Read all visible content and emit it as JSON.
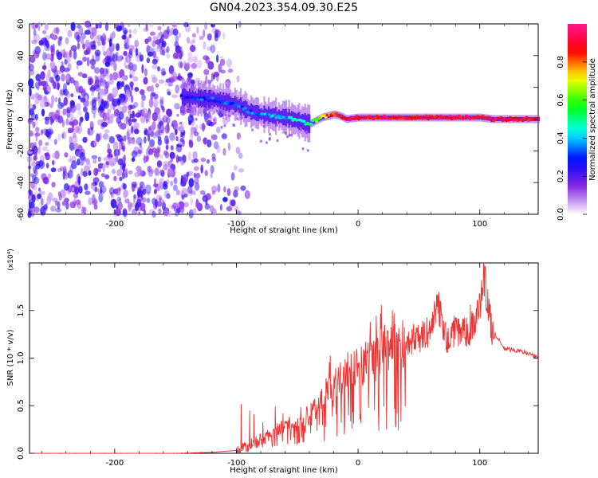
{
  "chart_data": [
    {
      "type": "heatmap",
      "title": "GN04.2023.354.09.30.E25",
      "xlabel": "Height of straight line (km)",
      "ylabel": "Frequency (Hz)",
      "xlim": [
        -270,
        148
      ],
      "ylim": [
        -60,
        60
      ],
      "xticks": [
        -200,
        -100,
        0,
        100
      ],
      "yticks": [
        -60,
        -40,
        -20,
        0,
        20,
        40,
        60
      ],
      "colorbar": {
        "label": "Normalized spectral amplitude",
        "range": [
          0,
          1
        ],
        "ticks": [
          0.0,
          0.2,
          0.4,
          0.6,
          0.8
        ],
        "colormap": [
          "#ffffff",
          "#8a2be2",
          "#0000ff",
          "#00ffff",
          "#00ff00",
          "#ffff00",
          "#ff0000",
          "#ff1493"
        ]
      },
      "dominant_frequency_track": {
        "x": [
          -145,
          -130,
          -115,
          -100,
          -90,
          -80,
          -70,
          -60,
          -50,
          -40,
          -35,
          -30,
          -25,
          -20,
          -15,
          -10,
          0,
          20,
          40,
          60,
          80,
          100,
          110,
          148
        ],
        "y": [
          14,
          13,
          12,
          9,
          5,
          3,
          2,
          1,
          -1,
          -3,
          -1,
          1,
          2,
          3,
          2,
          0,
          1,
          1,
          1,
          1,
          1,
          1,
          0,
          0
        ],
        "amplitude": [
          0.25,
          0.3,
          0.3,
          0.3,
          0.3,
          0.35,
          0.4,
          0.4,
          0.45,
          0.5,
          0.6,
          0.7,
          0.8,
          0.85,
          0.9,
          0.9,
          0.9,
          0.9,
          0.9,
          0.9,
          0.9,
          0.9,
          0.9,
          0.9
        ]
      },
      "noise_region_x": [
        -270,
        -100
      ],
      "grid": false
    },
    {
      "type": "line",
      "xlabel": "Height of straight line (km)",
      "ylabel": "SNR (10 * v/v)",
      "y_multiplier": "(x10⁴)",
      "xlim": [
        -270,
        148
      ],
      "ylim": [
        0,
        2.0
      ],
      "xticks": [
        -200,
        -100,
        0,
        100
      ],
      "yticks": [
        0.0,
        0.5,
        1.0,
        1.5
      ],
      "line_color": "#ee3333",
      "x": [
        -270,
        -200,
        -150,
        -120,
        -100,
        -90,
        -80,
        -70,
        -60,
        -50,
        -40,
        -30,
        -20,
        -10,
        0,
        10,
        20,
        30,
        40,
        50,
        60,
        65,
        70,
        75,
        80,
        90,
        100,
        103,
        107,
        110,
        120,
        130,
        140,
        148
      ],
      "y": [
        0.0,
        0.0,
        0.0,
        0.01,
        0.03,
        0.08,
        0.15,
        0.22,
        0.3,
        0.3,
        0.4,
        0.55,
        0.7,
        0.82,
        0.9,
        1.0,
        1.08,
        1.15,
        1.18,
        1.2,
        1.3,
        1.6,
        1.3,
        1.15,
        1.3,
        1.25,
        1.5,
        1.95,
        1.5,
        1.3,
        1.1,
        1.08,
        1.05,
        1.0
      ],
      "grid": false
    }
  ]
}
